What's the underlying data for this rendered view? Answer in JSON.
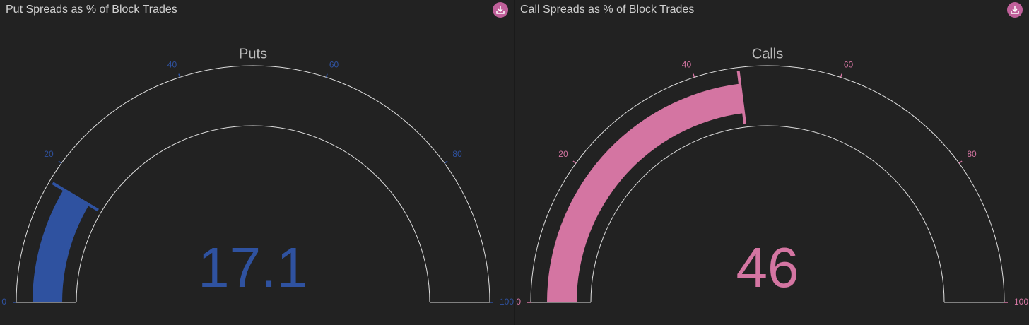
{
  "chart_data": [
    {
      "type": "gauge",
      "panel_title": "Put Spreads as % of Block Trades",
      "title": "Puts",
      "value": 17.1,
      "range": [
        0,
        100
      ],
      "ticks": [
        0,
        20,
        40,
        60,
        80,
        100
      ],
      "color": "#2f52a0"
    },
    {
      "type": "gauge",
      "panel_title": "Call Spreads as % of Block Trades",
      "title": "Calls",
      "value": 46,
      "range": [
        0,
        100
      ],
      "ticks": [
        0,
        20,
        40,
        60,
        80,
        100
      ],
      "color": "#d475a2"
    }
  ]
}
